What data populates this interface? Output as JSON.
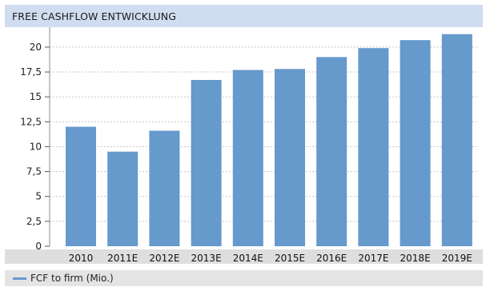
{
  "header": {
    "title": "FREE CASHFLOW ENTWICKLUNG"
  },
  "legend": {
    "label": "FCF to firm (Mio.)"
  },
  "colors": {
    "bar": "#6699cc",
    "header_bg": "#d0ddf0",
    "grid": "#c8c8c8"
  },
  "chart_data": {
    "type": "bar",
    "title": "FREE CASHFLOW ENTWICKLUNG",
    "xlabel": "",
    "ylabel": "",
    "categories": [
      "2010",
      "2011E",
      "2012E",
      "2013E",
      "2014E",
      "2015E",
      "2016E",
      "2017E",
      "2018E",
      "2019E"
    ],
    "series": [
      {
        "name": "FCF to firm (Mio.)",
        "values": [
          12.0,
          9.5,
          11.6,
          16.7,
          17.7,
          17.8,
          19.0,
          19.9,
          20.7,
          21.3
        ]
      }
    ],
    "ylim": [
      0,
      22
    ],
    "yticks": [
      0,
      2.5,
      5,
      7.5,
      10,
      12.5,
      15,
      17.5,
      20
    ],
    "ytick_labels": [
      "0",
      "2,5",
      "5",
      "7,5",
      "10",
      "12,5",
      "15",
      "17,5",
      "20"
    ],
    "grid": true,
    "legend_position": "bottom-left"
  }
}
